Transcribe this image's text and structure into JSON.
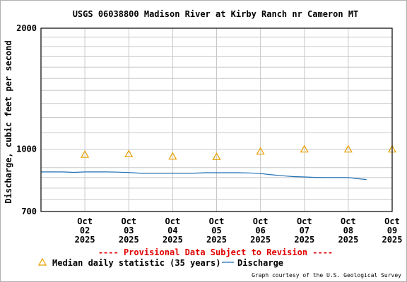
{
  "chart_data": {
    "type": "line",
    "title": "USGS 06038800 Madison River at Kirby Ranch nr Cameron MT",
    "ylabel": "Discharge, cubic feet per second",
    "xlabel": "",
    "yscale": "log",
    "ylim": [
      700,
      2000
    ],
    "y_ticks": [
      "2000",
      "1000",
      "700"
    ],
    "x_ticks": [
      {
        "month": "Oct",
        "day": "02",
        "year": "2025"
      },
      {
        "month": "Oct",
        "day": "03",
        "year": "2025"
      },
      {
        "month": "Oct",
        "day": "04",
        "year": "2025"
      },
      {
        "month": "Oct",
        "day": "05",
        "year": "2025"
      },
      {
        "month": "Oct",
        "day": "06",
        "year": "2025"
      },
      {
        "month": "Oct",
        "day": "07",
        "year": "2025"
      },
      {
        "month": "Oct",
        "day": "08",
        "year": "2025"
      },
      {
        "month": "Oct",
        "day": "09",
        "year": "2025"
      }
    ],
    "xlim": [
      "2025-10-01T12:00",
      "2025-10-09T12:00"
    ],
    "grid": true,
    "series": [
      {
        "name": "Median daily statistic (35 years)",
        "color": "#e8a000",
        "marker": "triangle",
        "points": [
          {
            "x": "2025-10-02T12:00",
            "y": 970
          },
          {
            "x": "2025-10-03T12:00",
            "y": 973
          },
          {
            "x": "2025-10-04T12:00",
            "y": 960
          },
          {
            "x": "2025-10-05T12:00",
            "y": 958
          },
          {
            "x": "2025-10-06T12:00",
            "y": 988
          },
          {
            "x": "2025-10-07T12:00",
            "y": 1000
          },
          {
            "x": "2025-10-08T12:00",
            "y": 1000
          },
          {
            "x": "2025-10-09T12:00",
            "y": 1000
          }
        ]
      },
      {
        "name": "Discharge",
        "color": "#1f6fb4",
        "points": [
          {
            "x": "2025-10-01T12:00",
            "y": 878
          },
          {
            "x": "2025-10-01T18:00",
            "y": 878
          },
          {
            "x": "2025-10-02T00:00",
            "y": 878
          },
          {
            "x": "2025-10-02T06:00",
            "y": 876
          },
          {
            "x": "2025-10-02T12:00",
            "y": 878
          },
          {
            "x": "2025-10-02T18:00",
            "y": 878
          },
          {
            "x": "2025-10-03T00:00",
            "y": 878
          },
          {
            "x": "2025-10-03T06:00",
            "y": 877
          },
          {
            "x": "2025-10-03T12:00",
            "y": 875
          },
          {
            "x": "2025-10-03T18:00",
            "y": 872
          },
          {
            "x": "2025-10-04T00:00",
            "y": 872
          },
          {
            "x": "2025-10-04T12:00",
            "y": 872
          },
          {
            "x": "2025-10-05T00:00",
            "y": 872
          },
          {
            "x": "2025-10-05T06:00",
            "y": 874
          },
          {
            "x": "2025-10-05T12:00",
            "y": 874
          },
          {
            "x": "2025-10-06T00:00",
            "y": 874
          },
          {
            "x": "2025-10-06T06:00",
            "y": 873
          },
          {
            "x": "2025-10-06T12:00",
            "y": 870
          },
          {
            "x": "2025-10-06T18:00",
            "y": 864
          },
          {
            "x": "2025-10-07T00:00",
            "y": 859
          },
          {
            "x": "2025-10-07T06:00",
            "y": 855
          },
          {
            "x": "2025-10-07T12:00",
            "y": 853
          },
          {
            "x": "2025-10-07T18:00",
            "y": 851
          },
          {
            "x": "2025-10-08T00:00",
            "y": 850
          },
          {
            "x": "2025-10-08T06:00",
            "y": 850
          },
          {
            "x": "2025-10-08T12:00",
            "y": 850
          },
          {
            "x": "2025-10-08T18:00",
            "y": 844
          },
          {
            "x": "2025-10-08T22:00",
            "y": 841
          }
        ]
      }
    ]
  },
  "provisional_note": "---- Provisional Data Subject to Revision ----",
  "legend": {
    "median_label": "Median daily statistic (35 years)",
    "discharge_label": "Discharge"
  },
  "credit": "Graph courtesy of the U.S. Geological Survey",
  "colors": {
    "grid": "#c8c8c8",
    "axis": "#000000",
    "provisional": "#e00000"
  }
}
